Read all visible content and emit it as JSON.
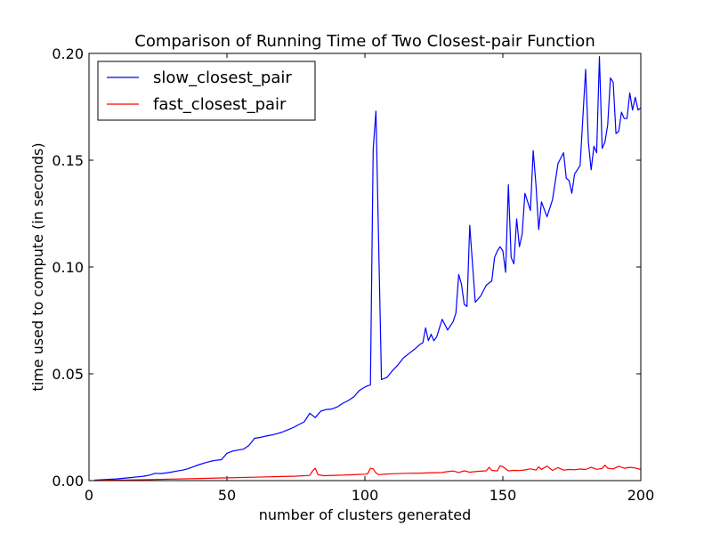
{
  "chart_data": {
    "type": "line",
    "title": "Comparison of Running Time of Two Closest-pair Function",
    "xlabel": "number of clusters generated",
    "ylabel": "time used to compute (in seconds)",
    "xlim": [
      0,
      200
    ],
    "ylim": [
      0,
      0.2
    ],
    "xticks": [
      0,
      50,
      100,
      150,
      200
    ],
    "xtick_labels": [
      "0",
      "50",
      "100",
      "150",
      "200"
    ],
    "yticks": [
      0,
      0.05,
      0.1,
      0.15,
      0.2
    ],
    "ytick_labels": [
      "0.00",
      "0.05",
      "0.10",
      "0.15",
      "0.20"
    ],
    "grid": false,
    "legend_position": "top-left",
    "series": [
      {
        "name": "slow_closest_pair",
        "color": "#0000ff",
        "x": [
          2,
          5,
          10,
          15,
          18,
          20,
          22,
          24,
          26,
          28,
          30,
          32,
          34,
          36,
          38,
          40,
          42,
          44,
          46,
          48,
          50,
          52,
          54,
          56,
          58,
          60,
          62,
          64,
          66,
          68,
          70,
          72,
          74,
          76,
          78,
          80,
          82,
          84,
          86,
          88,
          90,
          92,
          94,
          96,
          98,
          100,
          101,
          102,
          103,
          104,
          106,
          108,
          110,
          112,
          114,
          116,
          118,
          120,
          121,
          122,
          123,
          124,
          125,
          126,
          128,
          130,
          132,
          133,
          134,
          135,
          136,
          137,
          138,
          140,
          142,
          144,
          146,
          147,
          148,
          149,
          150,
          151,
          152,
          153,
          154,
          155,
          156,
          157,
          158,
          160,
          161,
          162,
          163,
          164,
          166,
          168,
          170,
          172,
          173,
          174,
          175,
          176,
          178,
          180,
          181,
          182,
          183,
          184,
          185,
          186,
          187,
          188,
          189,
          190,
          191,
          192,
          193,
          194,
          195,
          196,
          197,
          198,
          199,
          200
        ],
        "y": [
          0.0002,
          0.0004,
          0.0008,
          0.0014,
          0.0018,
          0.0021,
          0.0026,
          0.0034,
          0.0033,
          0.0036,
          0.004,
          0.0045,
          0.0049,
          0.0056,
          0.0066,
          0.0075,
          0.0083,
          0.009,
          0.0095,
          0.0098,
          0.0128,
          0.0138,
          0.0143,
          0.0147,
          0.0165,
          0.0198,
          0.0202,
          0.0208,
          0.0213,
          0.0219,
          0.0227,
          0.0237,
          0.0248,
          0.0262,
          0.0275,
          0.0315,
          0.0295,
          0.0325,
          0.0333,
          0.0335,
          0.0345,
          0.0362,
          0.0375,
          0.0392,
          0.0422,
          0.0438,
          0.0444,
          0.0447,
          0.155,
          0.173,
          0.0473,
          0.0483,
          0.0515,
          0.0542,
          0.0575,
          0.0595,
          0.0615,
          0.0638,
          0.0645,
          0.0715,
          0.0655,
          0.0685,
          0.0655,
          0.0672,
          0.0755,
          0.0705,
          0.0745,
          0.0785,
          0.0965,
          0.092,
          0.0825,
          0.0815,
          0.1195,
          0.0835,
          0.0865,
          0.0915,
          0.0935,
          0.1045,
          0.1075,
          0.1095,
          0.1075,
          0.0975,
          0.1385,
          0.1045,
          0.1015,
          0.1225,
          0.1095,
          0.1155,
          0.1345,
          0.1265,
          0.1545,
          0.1385,
          0.1175,
          0.1305,
          0.1235,
          0.1315,
          0.1485,
          0.1535,
          0.1415,
          0.1405,
          0.1345,
          0.1435,
          0.1475,
          0.1925,
          0.1585,
          0.1455,
          0.1565,
          0.1535,
          0.1985,
          0.1555,
          0.1585,
          0.1665,
          0.1885,
          0.1865,
          0.1625,
          0.1635,
          0.1725,
          0.1695,
          0.1695,
          0.1815,
          0.1735,
          0.1795,
          0.1735,
          0.1745
        ],
        "note_unused": ""
      },
      {
        "name": "fast_closest_pair",
        "color": "#ff0000",
        "x": [
          2,
          10,
          20,
          30,
          40,
          50,
          60,
          70,
          75,
          80,
          81,
          82,
          83,
          85,
          90,
          95,
          98,
          100,
          101,
          102,
          103,
          104,
          105,
          108,
          110,
          115,
          120,
          125,
          128,
          130,
          132,
          134,
          136,
          138,
          140,
          142,
          144,
          145,
          146,
          148,
          149,
          150,
          152,
          154,
          156,
          158,
          160,
          162,
          163,
          164,
          166,
          168,
          170,
          172,
          174,
          176,
          178,
          180,
          182,
          184,
          186,
          187,
          188,
          190,
          192,
          194,
          196,
          198,
          200
        ],
        "y": [
          0.0001,
          0.0002,
          0.0004,
          0.0007,
          0.001,
          0.0013,
          0.0016,
          0.0019,
          0.0021,
          0.0024,
          0.0045,
          0.0058,
          0.0028,
          0.0023,
          0.0025,
          0.0027,
          0.0029,
          0.003,
          0.0032,
          0.0058,
          0.0055,
          0.0036,
          0.0028,
          0.0031,
          0.0032,
          0.0034,
          0.0035,
          0.0037,
          0.0038,
          0.0042,
          0.0045,
          0.0038,
          0.0046,
          0.0039,
          0.0042,
          0.0044,
          0.0046,
          0.0062,
          0.0048,
          0.0045,
          0.0069,
          0.0065,
          0.0046,
          0.0048,
          0.0047,
          0.005,
          0.0055,
          0.0049,
          0.0064,
          0.0052,
          0.0068,
          0.0048,
          0.0061,
          0.0049,
          0.0052,
          0.0051,
          0.0054,
          0.0052,
          0.0062,
          0.0053,
          0.0057,
          0.0072,
          0.0058,
          0.0055,
          0.0067,
          0.0058,
          0.0062,
          0.0059,
          0.0052
        ]
      }
    ]
  }
}
